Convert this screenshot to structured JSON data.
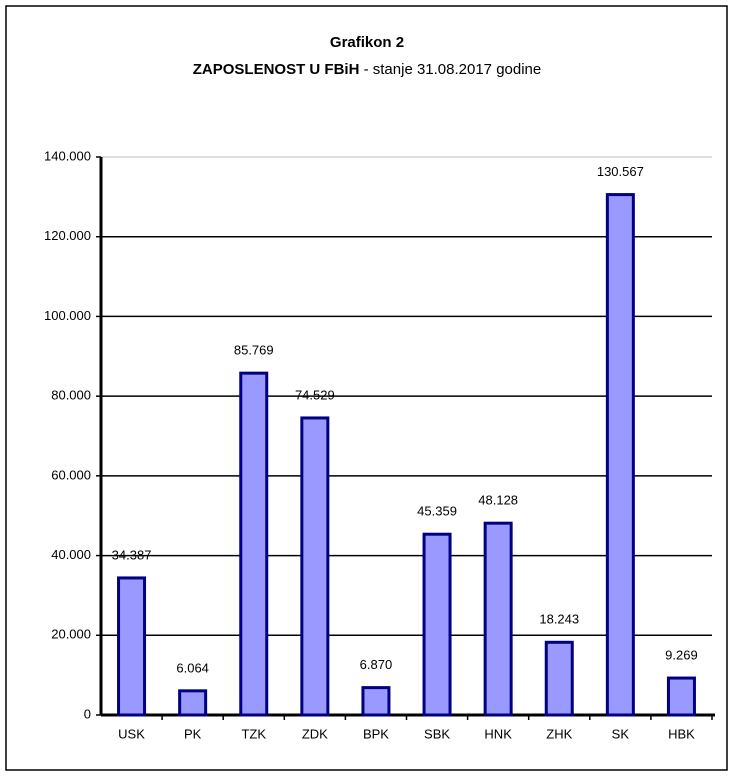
{
  "chart_data": {
    "type": "bar",
    "title": "Grafikon 2",
    "subtitle_parts": [
      "ZAPOSLENOST U FBiH",
      "- stanje  31.08.2017 godine"
    ],
    "categories": [
      "USK",
      "PK",
      "TZK",
      "ZDK",
      "BPK",
      "SBK",
      "HNK",
      "ZHK",
      "SK",
      "HBK"
    ],
    "values": [
      34387,
      6064,
      85769,
      74529,
      6870,
      45359,
      48128,
      18243,
      130567,
      9269
    ],
    "value_labels": [
      "34.387",
      "6.064",
      "85.769",
      "74.529",
      "6.870",
      "45.359",
      "48.128",
      "18.243",
      "130.567",
      "9.269"
    ],
    "color": "#9999ff",
    "ylim": [
      0,
      140000
    ],
    "yticks": [
      0,
      {
        "value": 20000,
        "label": "20.000"
      },
      {
        "value": 40000,
        "label": "40.000"
      },
      {
        "value": 60000,
        "label": "60.000"
      },
      {
        "value": 80000,
        "label": "80.000"
      },
      {
        "value": 100000,
        "label": "100.000"
      },
      {
        "value": 120000,
        "label": "120.000"
      },
      {
        "value": 140000,
        "label": "140.000"
      }
    ],
    "grid": true
  }
}
